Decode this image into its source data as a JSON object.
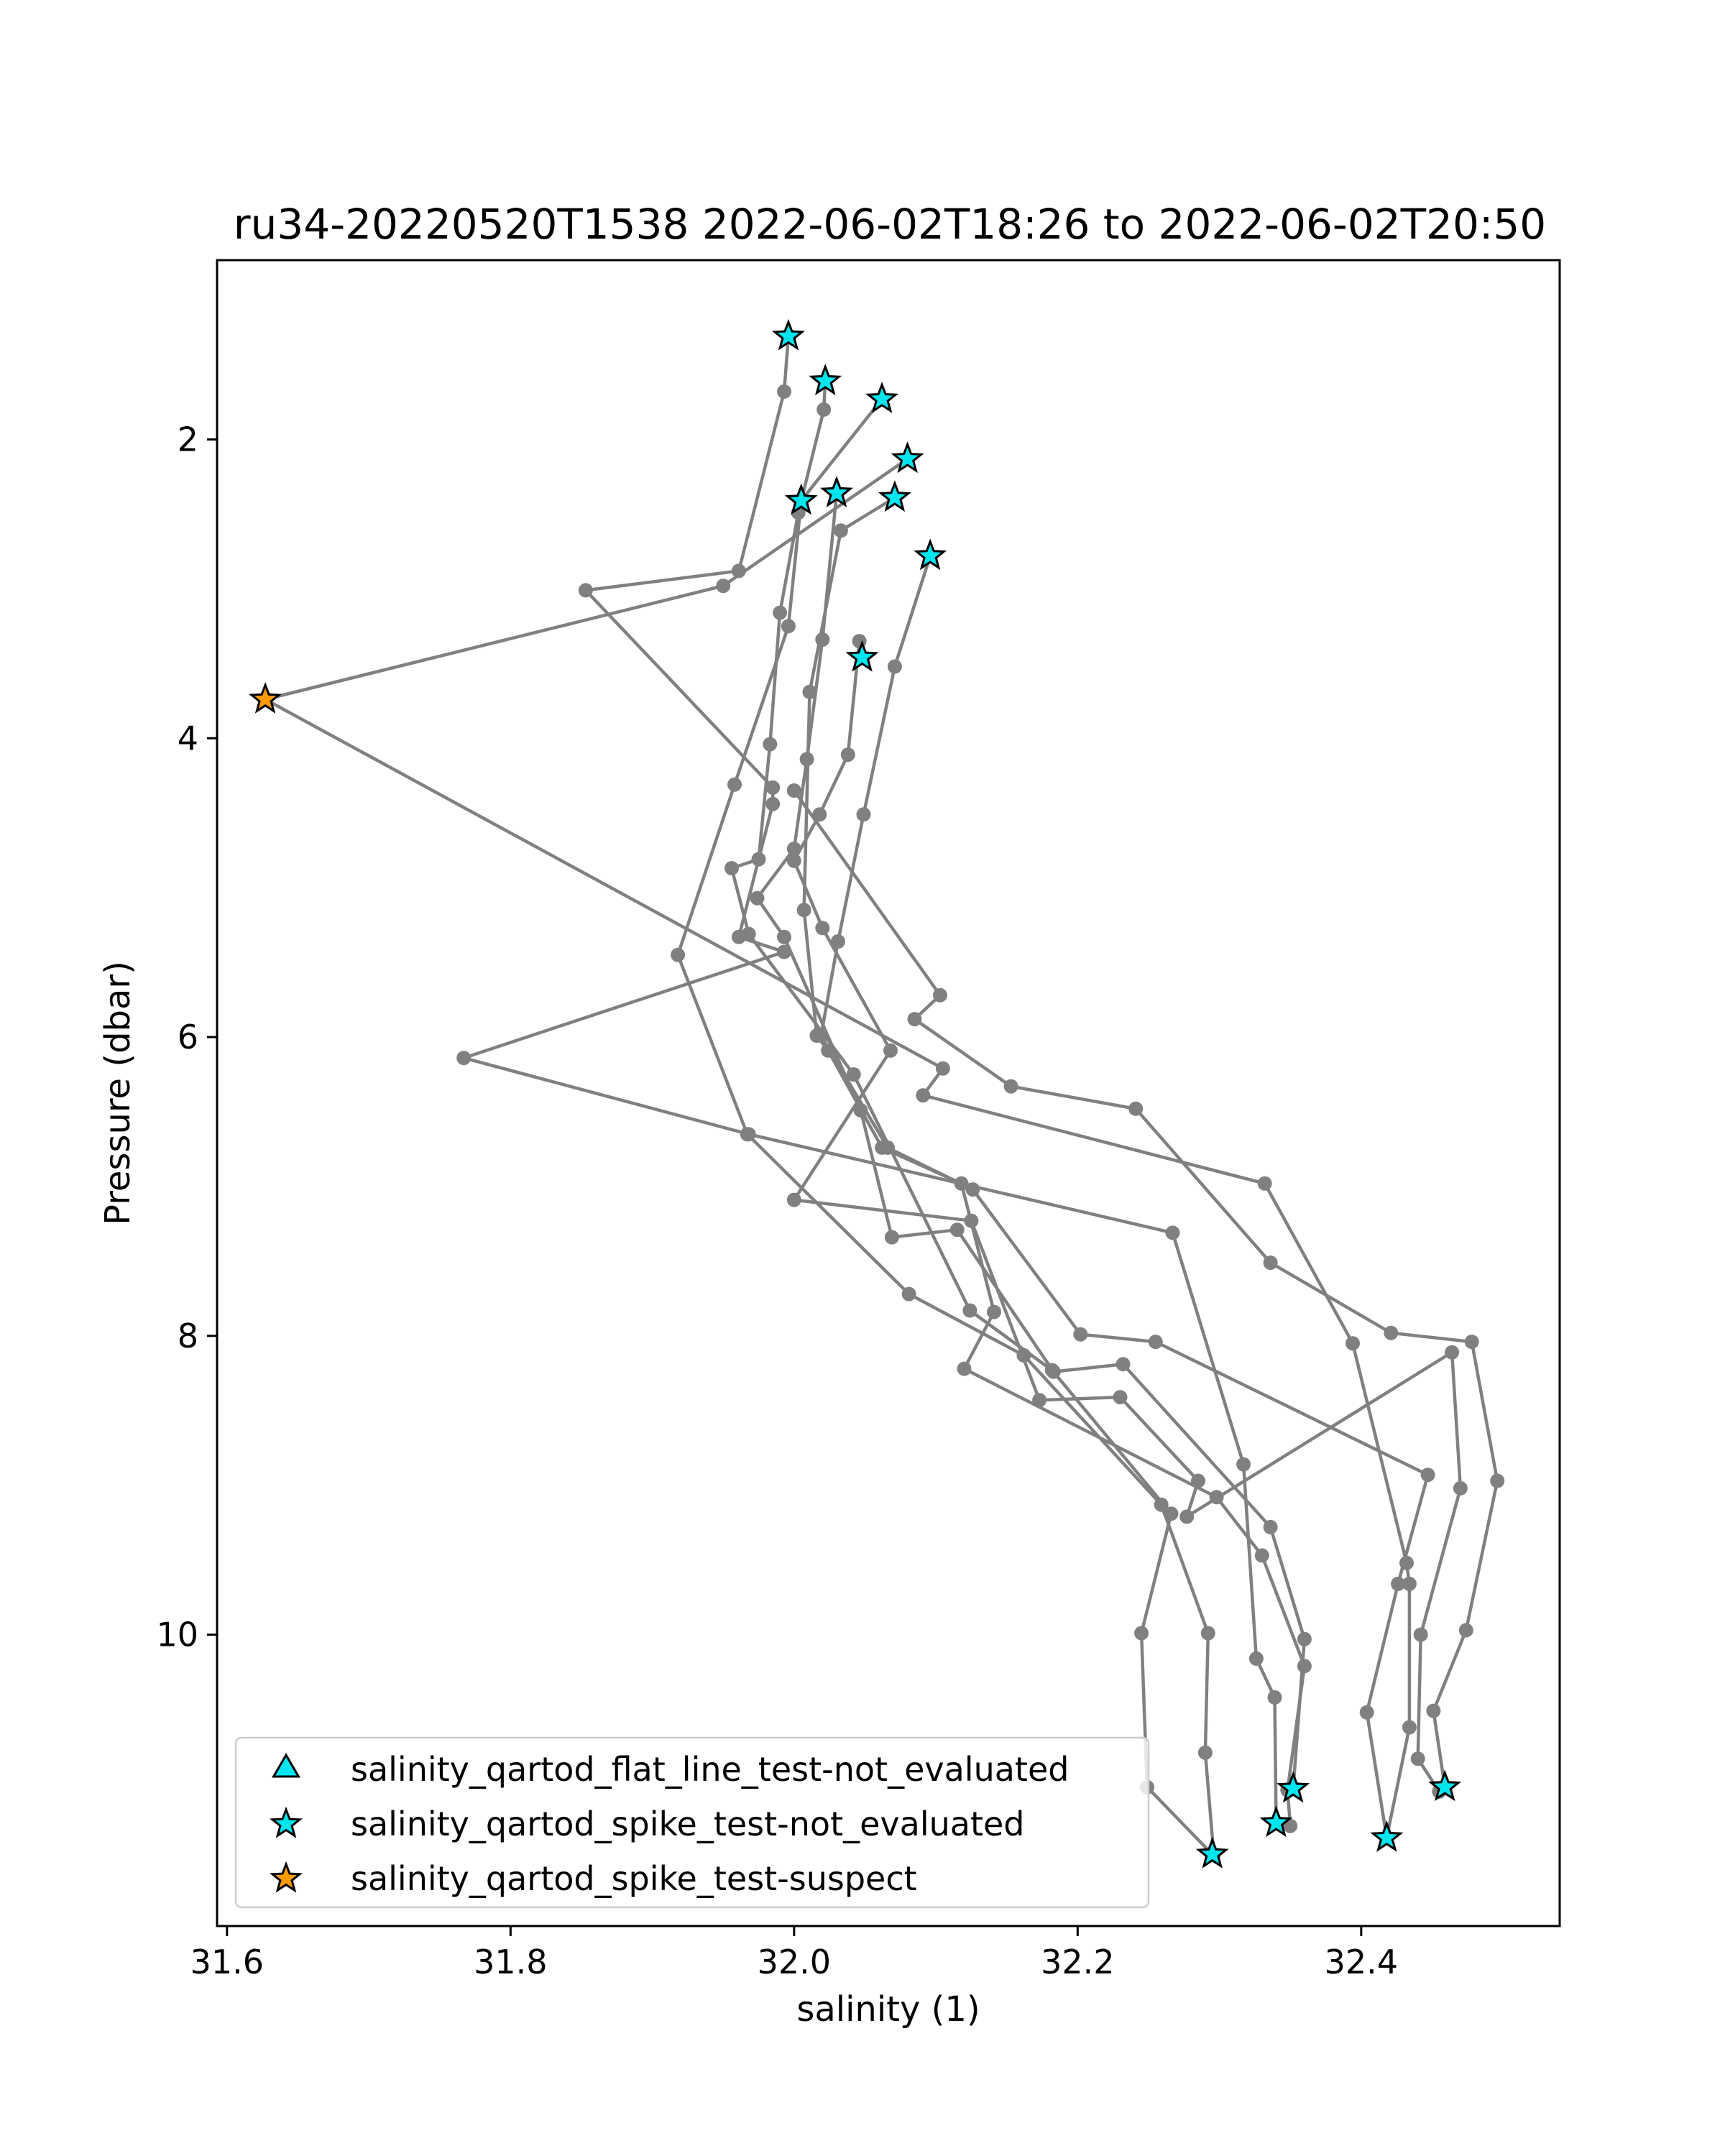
{
  "chart_data": {
    "type": "scatter",
    "title": "ru34-20220520T1538 2022-06-02T18:26 to 2022-06-02T20:50",
    "xlabel": "salinity (1)",
    "ylabel": "Pressure (dbar)",
    "xlim": [
      31.593,
      32.54
    ],
    "ylim": [
      11.95,
      0.8
    ],
    "y_inverted": true,
    "grid": false,
    "x_ticks": [
      {
        "value": 31.6,
        "label": "31.6"
      },
      {
        "value": 31.8,
        "label": "31.8"
      },
      {
        "value": 32.0,
        "label": "32.0"
      },
      {
        "value": 32.2,
        "label": "32.2"
      },
      {
        "value": 32.4,
        "label": "32.4"
      }
    ],
    "y_ticks": [
      {
        "value": 2,
        "label": "2"
      },
      {
        "value": 4,
        "label": "4"
      },
      {
        "value": 6,
        "label": "6"
      },
      {
        "value": 8,
        "label": "8"
      },
      {
        "value": 10,
        "label": "10"
      }
    ],
    "line_color": "#808080",
    "colors": {
      "not_evaluated": "#00e5ee",
      "suspect": "#ff9900",
      "marker_edge": "#000000"
    },
    "legend": {
      "position": "lower-left",
      "entries": [
        {
          "label": "salinity_qartod_flat_line_test-not_evaluated",
          "marker": "triangle",
          "color": "#00e5ee"
        },
        {
          "label": "salinity_qartod_spike_test-not_evaluated",
          "marker": "star",
          "color": "#00e5ee"
        },
        {
          "label": "salinity_qartod_spike_test-suspect",
          "marker": "star",
          "color": "#ff9900"
        }
      ]
    },
    "series": [
      {
        "values": [
          [
            31.996,
            1.31
          ],
          [
            31.993,
            1.68
          ],
          [
            31.961,
            2.88
          ],
          [
            31.853,
            3.01
          ],
          [
            31.985,
            4.33
          ],
          [
            31.985,
            4.44
          ],
          [
            31.961,
            5.33
          ],
          [
            31.993,
            5.43
          ],
          [
            31.767,
            6.14
          ],
          [
            31.968,
            6.65
          ],
          [
            32.267,
            7.31
          ],
          [
            32.317,
            8.86
          ],
          [
            32.326,
            10.16
          ],
          [
            32.339,
            10.42
          ],
          [
            32.34,
            11.26
          ]
        ]
      },
      {
        "values": [
          [
            32.022,
            1.61
          ],
          [
            32.021,
            1.8
          ],
          [
            32.003,
            2.49
          ],
          [
            31.99,
            3.16
          ],
          [
            31.983,
            4.04
          ],
          [
            31.975,
            4.81
          ],
          [
            31.956,
            4.87
          ],
          [
            31.968,
            5.31
          ],
          [
            32.042,
            6.25
          ],
          [
            32.124,
            7.83
          ],
          [
            32.182,
            8.23
          ],
          [
            32.266,
            9.19
          ],
          [
            32.245,
            9.99
          ],
          [
            32.249,
            11.02
          ],
          [
            32.295,
            11.47
          ]
        ]
      },
      {
        "values": [
          [
            32.062,
            1.73
          ],
          [
            32.005,
            2.41
          ],
          [
            31.996,
            3.25
          ],
          [
            31.958,
            4.31
          ],
          [
            31.918,
            5.45
          ],
          [
            31.967,
            6.65
          ],
          [
            32.081,
            7.72
          ],
          [
            32.162,
            8.13
          ],
          [
            32.259,
            9.13
          ],
          [
            32.292,
            9.99
          ],
          [
            32.29,
            10.79
          ],
          [
            32.296,
            11.47
          ]
        ]
      },
      {
        "values": [
          [
            32.08,
            2.13
          ],
          [
            31.95,
            2.98
          ],
          [
            31.627,
            3.74
          ],
          [
            32.105,
            6.21
          ],
          [
            32.091,
            6.39
          ],
          [
            32.332,
            6.98
          ],
          [
            32.394,
            8.05
          ],
          [
            32.432,
            9.52
          ],
          [
            32.434,
            9.66
          ],
          [
            32.434,
            10.62
          ],
          [
            32.418,
            11.36
          ]
        ]
      },
      {
        "values": [
          [
            32.03,
            2.36
          ],
          [
            32.02,
            3.34
          ],
          [
            32.009,
            4.14
          ],
          [
            32.0,
            4.74
          ],
          [
            31.974,
            5.07
          ],
          [
            31.993,
            5.33
          ],
          [
            32.047,
            6.49
          ],
          [
            32.069,
            7.34
          ],
          [
            32.115,
            7.29
          ],
          [
            32.183,
            8.24
          ],
          [
            32.232,
            8.19
          ],
          [
            32.336,
            9.28
          ],
          [
            32.36,
            10.03
          ],
          [
            32.352,
            11.03
          ]
        ]
      },
      {
        "values": [
          [
            32.071,
            2.39
          ],
          [
            32.033,
            2.61
          ],
          [
            32.011,
            3.69
          ],
          [
            32.007,
            5.15
          ],
          [
            32.016,
            5.99
          ],
          [
            32.024,
            6.09
          ],
          [
            32.062,
            6.74
          ],
          [
            32.118,
            6.98
          ],
          [
            32.141,
            7.84
          ],
          [
            32.12,
            8.22
          ],
          [
            32.298,
            9.08
          ],
          [
            32.33,
            9.47
          ],
          [
            32.36,
            10.21
          ],
          [
            32.348,
            11.04
          ],
          [
            32.35,
            11.28
          ]
        ]
      },
      {
        "values": [
          [
            32.096,
            2.78
          ],
          [
            32.071,
            3.52
          ],
          [
            32.049,
            4.51
          ],
          [
            32.031,
            5.36
          ],
          [
            32.019,
            5.99
          ],
          [
            32.066,
            6.74
          ],
          [
            32.126,
            7.02
          ],
          [
            32.202,
            7.99
          ],
          [
            32.255,
            8.04
          ],
          [
            32.447,
            8.93
          ],
          [
            32.426,
            9.66
          ],
          [
            32.404,
            10.52
          ],
          [
            32.418,
            11.36
          ]
        ]
      },
      {
        "values": [
          [
            32.048,
            3.46
          ],
          [
            32.046,
            3.35
          ],
          [
            32.038,
            4.11
          ],
          [
            32.018,
            4.51
          ],
          [
            32.0,
            4.82
          ],
          [
            32.02,
            5.27
          ],
          [
            32.068,
            6.09
          ],
          [
            32.0,
            7.09
          ],
          [
            32.125,
            7.23
          ],
          [
            32.173,
            8.43
          ],
          [
            32.23,
            8.41
          ],
          [
            32.285,
            8.97
          ],
          [
            32.277,
            9.21
          ],
          [
            32.464,
            8.11
          ],
          [
            32.47,
            9.02
          ],
          [
            32.442,
            10.0
          ],
          [
            32.44,
            10.83
          ],
          [
            32.455,
            11.05
          ]
        ]
      },
      {
        "values": [
          [
            32.0,
            4.35
          ],
          [
            32.103,
            5.72
          ],
          [
            32.085,
            5.88
          ],
          [
            32.153,
            6.33
          ],
          [
            32.241,
            6.48
          ],
          [
            32.336,
            7.51
          ],
          [
            32.421,
            7.98
          ],
          [
            32.478,
            8.04
          ],
          [
            32.496,
            8.97
          ],
          [
            32.474,
            9.97
          ],
          [
            32.451,
            10.51
          ],
          [
            32.459,
            11.02
          ]
        ]
      }
    ],
    "flagged_points": [
      {
        "x": 31.996,
        "y": 1.31,
        "flag": "salinity_qartod_spike_test-not_evaluated"
      },
      {
        "x": 32.022,
        "y": 1.61,
        "flag": "salinity_qartod_spike_test-not_evaluated"
      },
      {
        "x": 32.062,
        "y": 1.73,
        "flag": "salinity_qartod_spike_test-not_evaluated"
      },
      {
        "x": 32.08,
        "y": 2.13,
        "flag": "salinity_qartod_spike_test-not_evaluated"
      },
      {
        "x": 32.005,
        "y": 2.41,
        "flag": "salinity_qartod_spike_test-not_evaluated"
      },
      {
        "x": 32.03,
        "y": 2.36,
        "flag": "salinity_qartod_spike_test-not_evaluated"
      },
      {
        "x": 32.071,
        "y": 2.39,
        "flag": "salinity_qartod_spike_test-not_evaluated"
      },
      {
        "x": 32.096,
        "y": 2.78,
        "flag": "salinity_qartod_spike_test-not_evaluated"
      },
      {
        "x": 32.048,
        "y": 3.46,
        "flag": "salinity_qartod_spike_test-not_evaluated"
      },
      {
        "x": 31.627,
        "y": 3.74,
        "flag": "salinity_qartod_spike_test-suspect"
      },
      {
        "x": 32.352,
        "y": 11.03,
        "flag": "salinity_qartod_spike_test-not_evaluated"
      },
      {
        "x": 32.459,
        "y": 11.02,
        "flag": "salinity_qartod_spike_test-not_evaluated"
      },
      {
        "x": 32.34,
        "y": 11.26,
        "flag": "salinity_qartod_spike_test-not_evaluated"
      },
      {
        "x": 32.418,
        "y": 11.36,
        "flag": "salinity_qartod_spike_test-not_evaluated"
      },
      {
        "x": 32.295,
        "y": 11.47,
        "flag": "salinity_qartod_spike_test-not_evaluated"
      }
    ]
  }
}
